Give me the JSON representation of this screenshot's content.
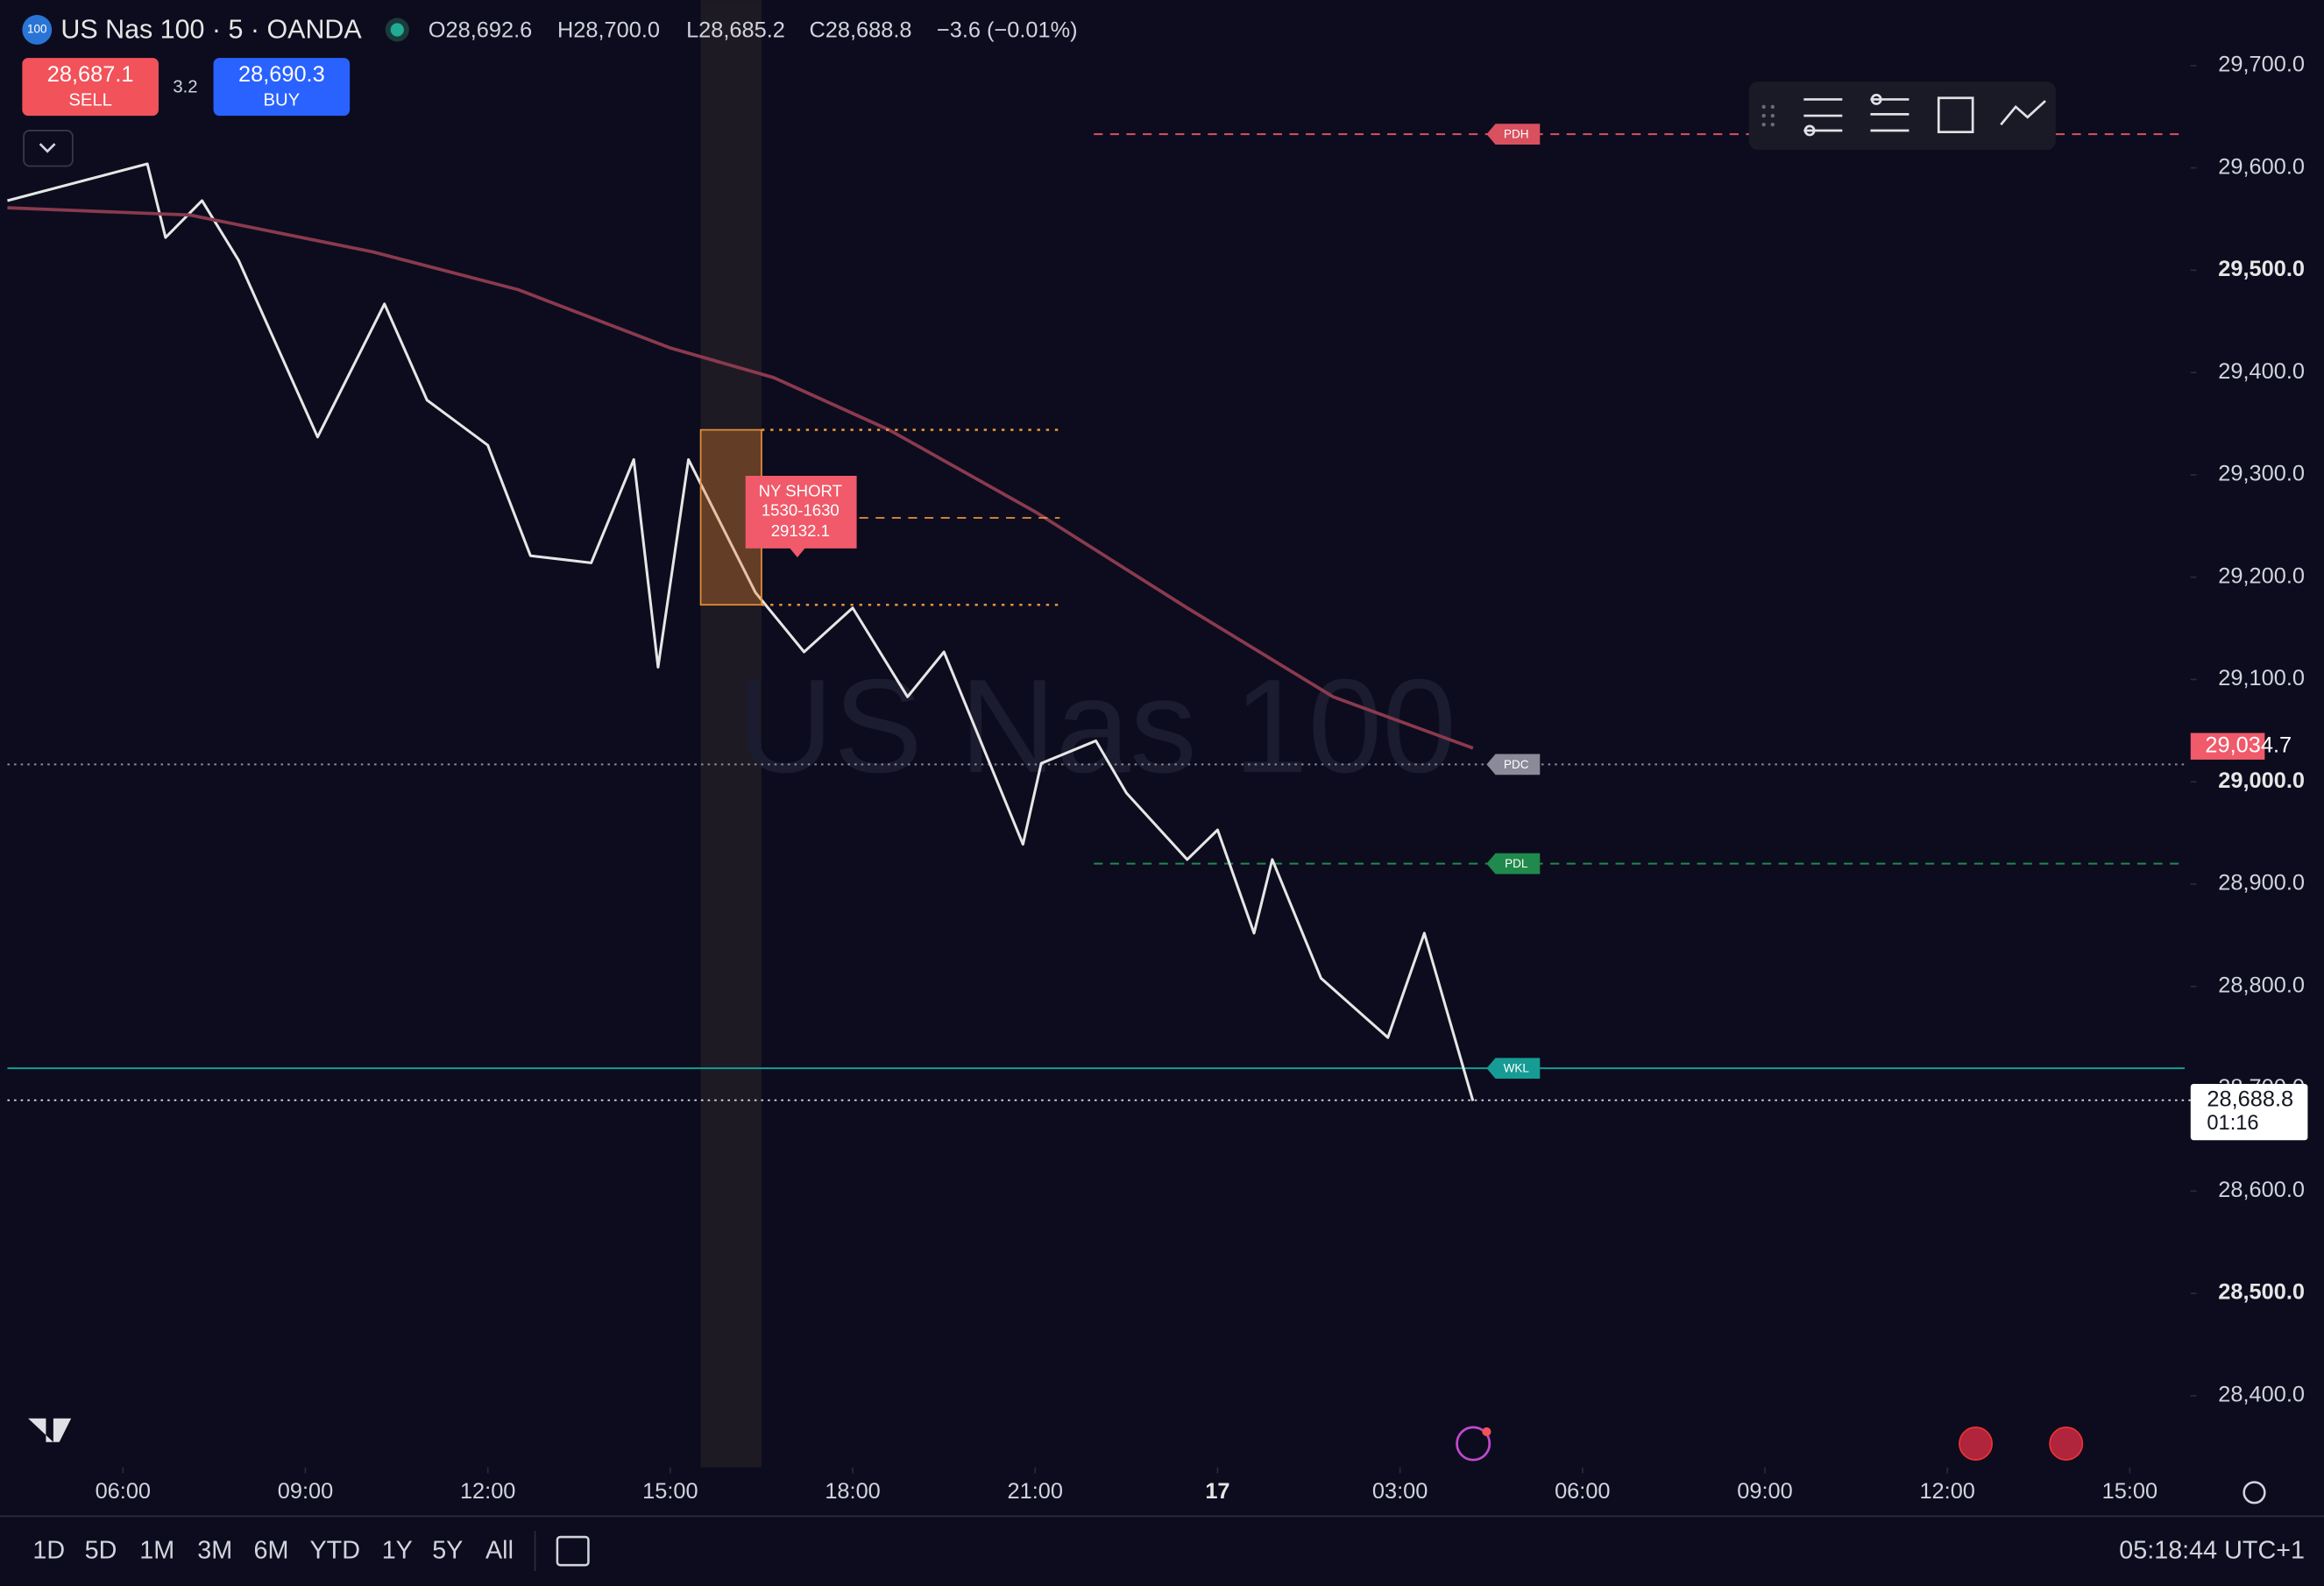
{
  "header": {
    "symbol_badge": "100",
    "symbol": "US Nas 100 · 5 · OANDA",
    "open": "O28,692.6",
    "high": "H28,700.0",
    "low": "L28,685.2",
    "close": "C28,688.8",
    "change": "−3.6 (−0.01%)",
    "sell_price": "28,687.1",
    "sell_label": "SELL",
    "spread": "3.2",
    "buy_price": "28,690.3",
    "buy_label": "BUY"
  },
  "watermark": "US Nas 100",
  "timeframes": [
    "1D",
    "5D",
    "1M",
    "3M",
    "6M",
    "YTD",
    "1Y",
    "5Y",
    "All"
  ],
  "clock": "05:18:44 UTC+1",
  "chart_data": {
    "type": "line",
    "xlim": [
      4.1,
      40.0
    ],
    "xticks": [
      {
        "value": 6,
        "label": "06:00"
      },
      {
        "value": 9,
        "label": "09:00"
      },
      {
        "value": 12,
        "label": "12:00"
      },
      {
        "value": 15,
        "label": "15:00"
      },
      {
        "value": 18,
        "label": "18:00"
      },
      {
        "value": 21,
        "label": "21:00"
      },
      {
        "value": 24,
        "label": "17"
      },
      {
        "value": 27,
        "label": "03:00"
      },
      {
        "value": 30,
        "label": "06:00"
      },
      {
        "value": 33,
        "label": "09:00"
      },
      {
        "value": 36,
        "label": "12:00"
      },
      {
        "value": 39,
        "label": "15:00"
      }
    ],
    "ylim": [
      28330,
      29764
    ],
    "yticks": [
      {
        "value": 28400,
        "label": "28,400.0"
      },
      {
        "value": 28500,
        "label": "28,500.0"
      },
      {
        "value": 28600,
        "label": "28,600.0"
      },
      {
        "value": 28700,
        "label": "28,700.0"
      },
      {
        "value": 28800,
        "label": "28,800.0"
      },
      {
        "value": 28900,
        "label": "28,900.0"
      },
      {
        "value": 29000,
        "label": "29,000.0"
      },
      {
        "value": 29100,
        "label": "29,100.0"
      },
      {
        "value": 29200,
        "label": "29,200.0"
      },
      {
        "value": 29300,
        "label": "29,300.0"
      },
      {
        "value": 29400,
        "label": "29,400.0"
      },
      {
        "value": 29500,
        "label": "29,500.0"
      },
      {
        "value": 29600,
        "label": "29,600.0"
      },
      {
        "value": 29700,
        "label": "29,700.0"
      }
    ],
    "series": [
      {
        "color": "#e6e6e6",
        "x": [
          4.1,
          6.4,
          6.7,
          7.3,
          7.9,
          9.2,
          10.3,
          11.0,
          12.0,
          12.7,
          13.7,
          14.4,
          14.8,
          15.3,
          16.4,
          17.2,
          18.0,
          18.9,
          19.5,
          20.8,
          21.1,
          22.0,
          22.5,
          23.5,
          24.0,
          24.6,
          24.9,
          25.7,
          26.8,
          27.4,
          28.2
        ],
        "values": [
          29568,
          29604,
          29532,
          29568,
          29510,
          29337,
          29467,
          29373,
          29329,
          29221,
          29214,
          29315,
          29112,
          29315,
          29185,
          29127,
          29170,
          29083,
          29127,
          28939,
          29018,
          29040,
          28989,
          28924,
          28953,
          28852,
          28924,
          28808,
          28750,
          28852,
          28688
        ]
      },
      {
        "color": "#8b3a4e",
        "x": [
          4.1,
          7.1,
          10.1,
          12.5,
          15.0,
          16.7,
          18.6,
          21.0,
          23.5,
          25.9,
          28.2
        ],
        "values": [
          29561,
          29554,
          29518,
          29481,
          29424,
          29395,
          29344,
          29264,
          29170,
          29083,
          29033
        ]
      }
    ],
    "levels": [
      {
        "name": "PDH",
        "value": 29633,
        "color": "#d9505e",
        "style": "dashed"
      },
      {
        "name": "PDC",
        "value": 29017,
        "color": "#8a8a99",
        "style": "dotted"
      },
      {
        "name": "PDL",
        "value": 28920,
        "color": "#1f8a4c",
        "style": "dashed"
      },
      {
        "name": "WKL",
        "value": 28720,
        "color": "#169c94",
        "style": "solid"
      }
    ],
    "session": {
      "x": [
        15.5,
        16.5
      ],
      "high": 29344,
      "low": 29173,
      "mid": 29258,
      "title": "NY SHORT",
      "range": "1530-1630",
      "price": 29132.1
    },
    "ma_label": {
      "value": 29034.7,
      "label": "29,034.7"
    },
    "last_price": {
      "value": 28688.8,
      "label": "28,688.8",
      "countdown": "01:16"
    }
  }
}
